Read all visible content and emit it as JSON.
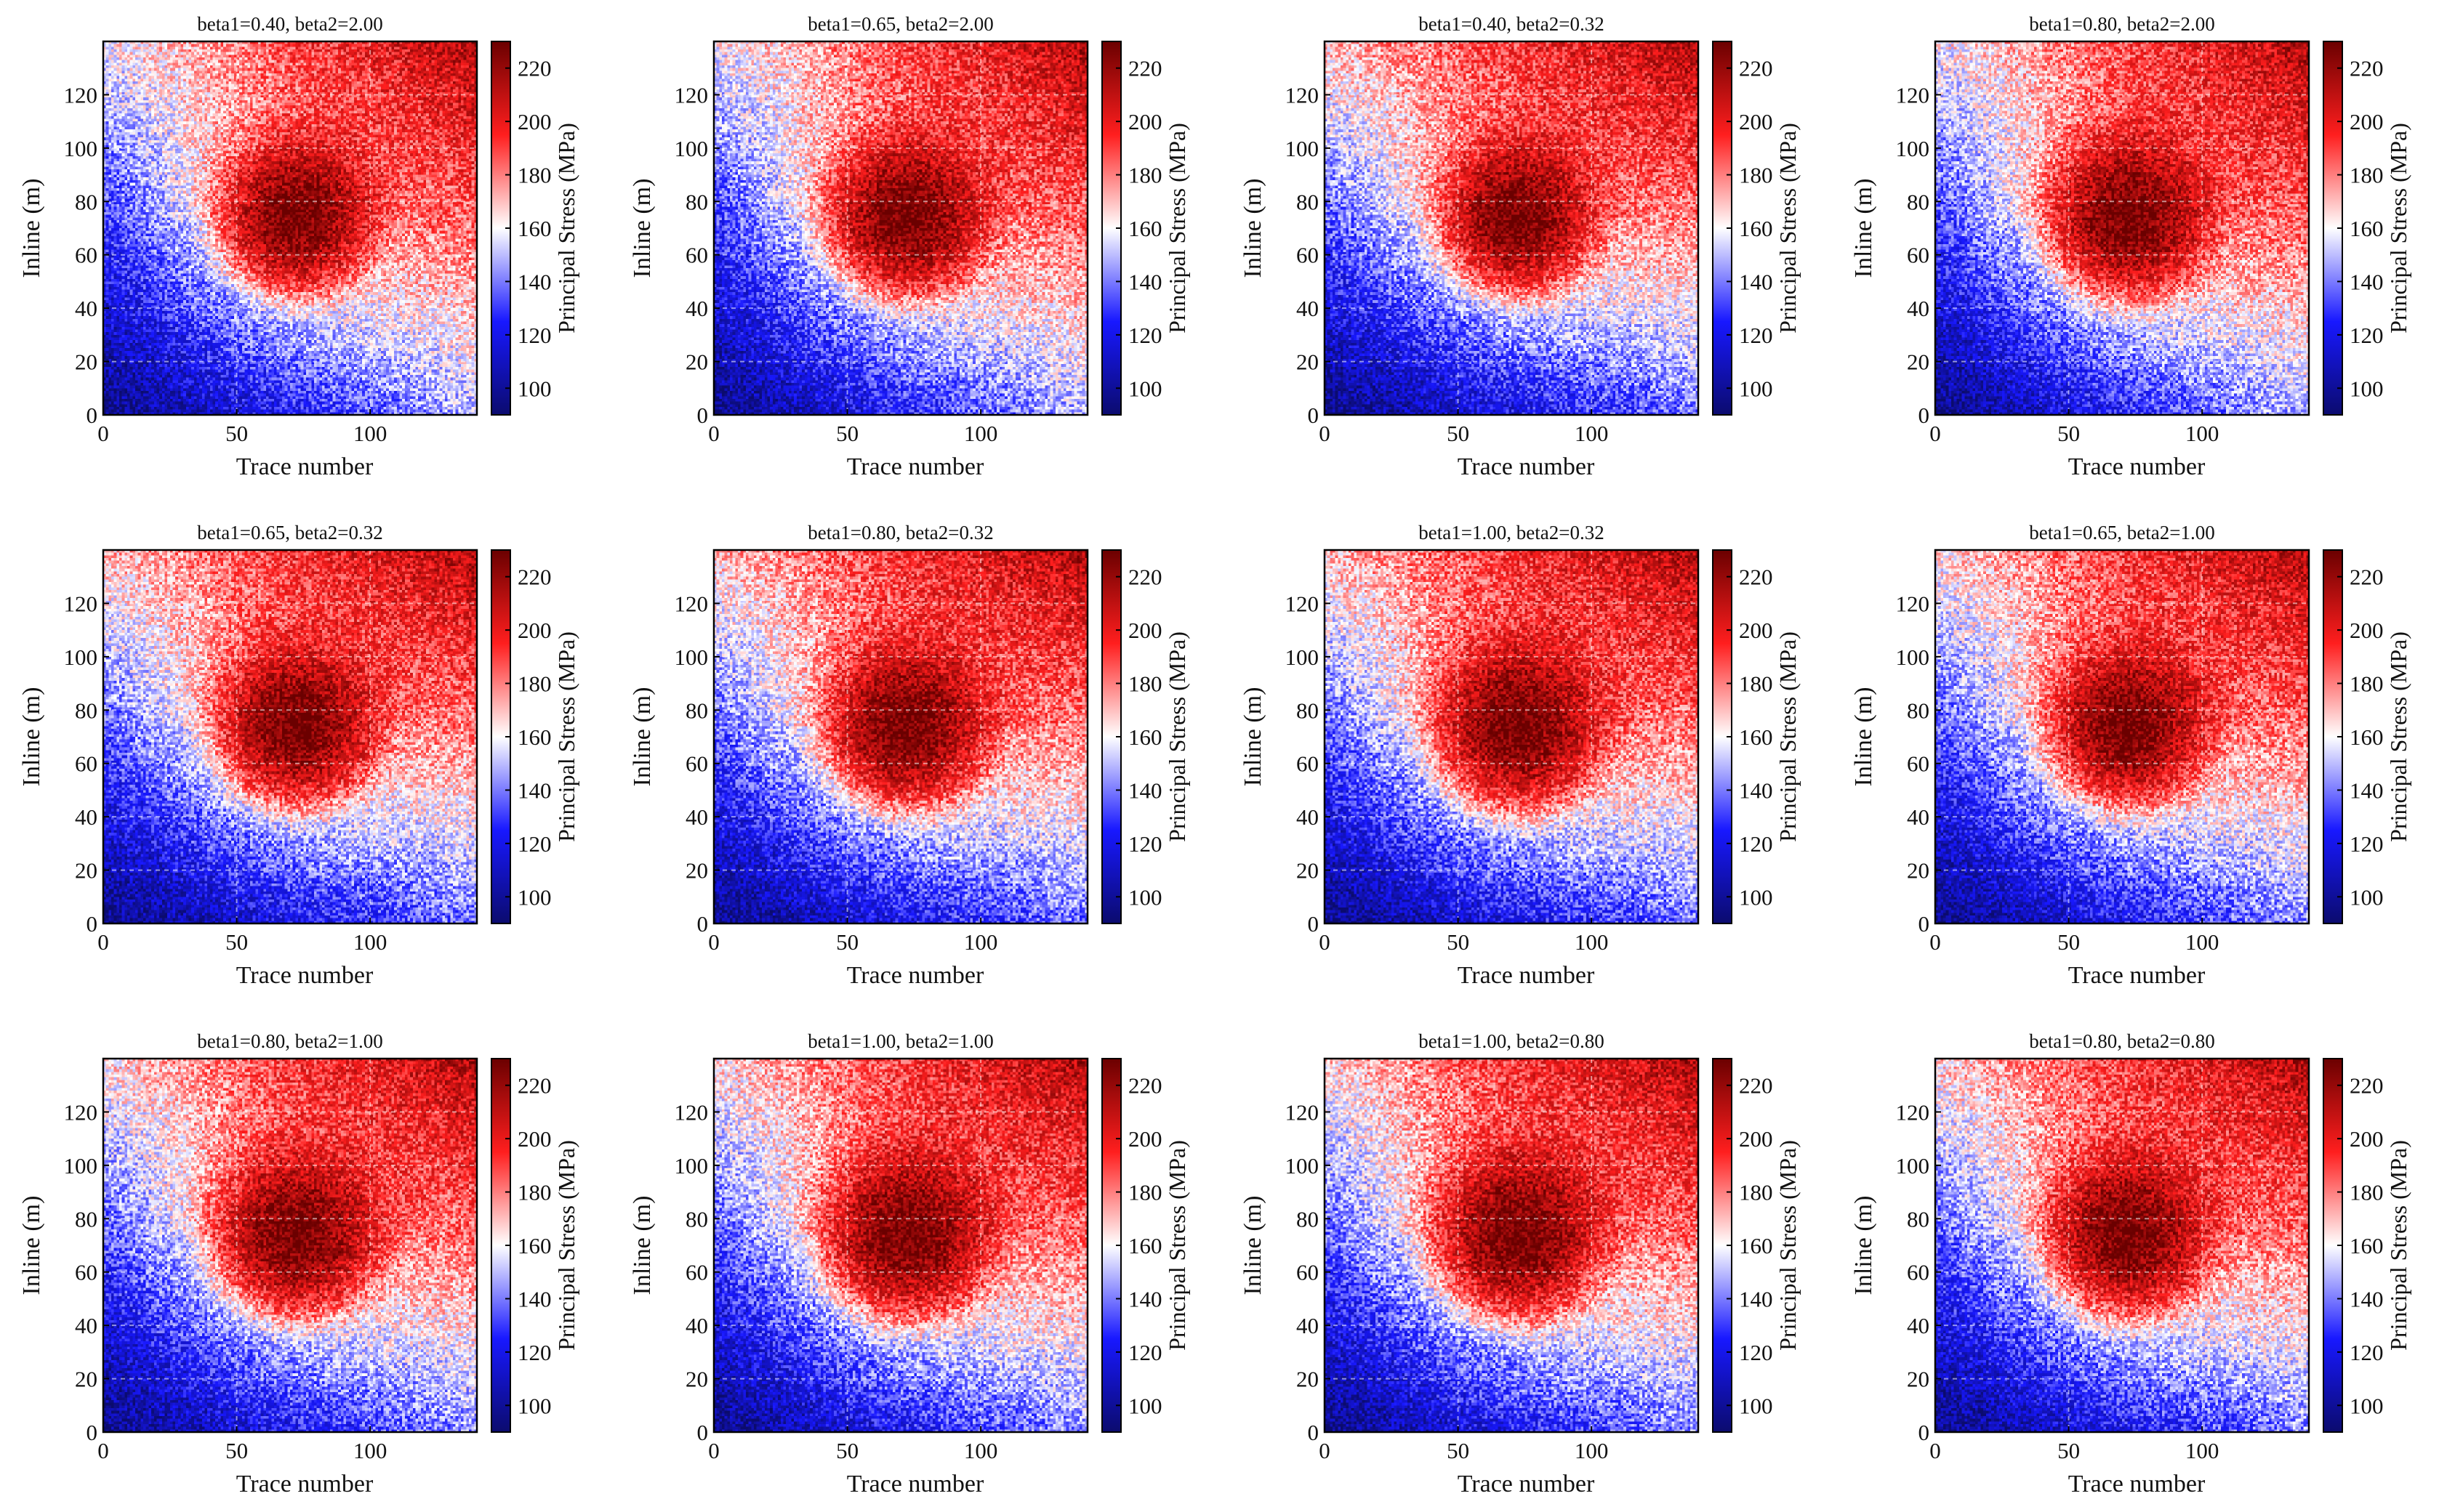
{
  "figure": {
    "colormap": {
      "low": "#0b0b6e",
      "mid_low": "#1818ff",
      "mid": "#ffffff",
      "mid_high": "#ff1e1e",
      "high": "#6b0000"
    }
  },
  "chart_data": [
    {
      "type": "heatmap",
      "title": "beta1=0.40, beta2=2.00",
      "beta1": 0.4,
      "beta2": 2.0,
      "xlabel": "Trace number",
      "ylabel": "Inline (m)",
      "colorbar_label": "Principal Stress (MPa)",
      "xlim": [
        0,
        140
      ],
      "ylim": [
        0,
        140
      ],
      "clim": [
        90,
        230
      ],
      "xticks": [
        0,
        50,
        100
      ],
      "yticks": [
        0,
        20,
        40,
        60,
        80,
        100,
        120
      ],
      "cbar_ticks": [
        100,
        120,
        140,
        160,
        180,
        200,
        220
      ],
      "grid": true,
      "anomaly": {
        "center_x": 72,
        "center_y": 74,
        "peak": 230
      }
    },
    {
      "type": "heatmap",
      "title": "beta1=0.65, beta2=2.00",
      "beta1": 0.65,
      "beta2": 2.0,
      "xlabel": "Trace number",
      "ylabel": "Inline (m)",
      "colorbar_label": "Principal Stress (MPa)",
      "xlim": [
        0,
        140
      ],
      "ylim": [
        0,
        140
      ],
      "clim": [
        90,
        230
      ],
      "xticks": [
        0,
        50,
        100
      ],
      "yticks": [
        0,
        20,
        40,
        60,
        80,
        100,
        120
      ],
      "cbar_ticks": [
        100,
        120,
        140,
        160,
        180,
        200,
        220
      ],
      "grid": true,
      "anomaly": {
        "center_x": 72,
        "center_y": 74,
        "peak": 230
      }
    },
    {
      "type": "heatmap",
      "title": "beta1=0.40, beta2=0.32",
      "beta1": 0.4,
      "beta2": 0.32,
      "xlabel": "Trace number",
      "ylabel": "Inline (m)",
      "colorbar_label": "Principal Stress (MPa)",
      "xlim": [
        0,
        140
      ],
      "ylim": [
        0,
        140
      ],
      "clim": [
        90,
        230
      ],
      "xticks": [
        0,
        50,
        100
      ],
      "yticks": [
        0,
        20,
        40,
        60,
        80,
        100,
        120
      ],
      "cbar_ticks": [
        100,
        120,
        140,
        160,
        180,
        200,
        220
      ],
      "grid": true,
      "anomaly": {
        "center_x": 72,
        "center_y": 74,
        "peak": 230
      }
    },
    {
      "type": "heatmap",
      "title": "beta1=0.80, beta2=2.00",
      "beta1": 0.8,
      "beta2": 2.0,
      "xlabel": "Trace number",
      "ylabel": "Inline (m)",
      "colorbar_label": "Principal Stress (MPa)",
      "xlim": [
        0,
        140
      ],
      "ylim": [
        0,
        140
      ],
      "clim": [
        90,
        230
      ],
      "xticks": [
        0,
        50,
        100
      ],
      "yticks": [
        0,
        20,
        40,
        60,
        80,
        100,
        120
      ],
      "cbar_ticks": [
        100,
        120,
        140,
        160,
        180,
        200,
        220
      ],
      "grid": true,
      "anomaly": {
        "center_x": 72,
        "center_y": 74,
        "peak": 230
      }
    },
    {
      "type": "heatmap",
      "title": "beta1=0.65, beta2=0.32",
      "beta1": 0.65,
      "beta2": 0.32,
      "xlabel": "Trace number",
      "ylabel": "Inline (m)",
      "colorbar_label": "Principal Stress (MPa)",
      "xlim": [
        0,
        140
      ],
      "ylim": [
        0,
        140
      ],
      "clim": [
        90,
        230
      ],
      "xticks": [
        0,
        50,
        100
      ],
      "yticks": [
        0,
        20,
        40,
        60,
        80,
        100,
        120
      ],
      "cbar_ticks": [
        100,
        120,
        140,
        160,
        180,
        200,
        220
      ],
      "grid": true,
      "anomaly": {
        "center_x": 72,
        "center_y": 74,
        "peak": 230
      }
    },
    {
      "type": "heatmap",
      "title": "beta1=0.80, beta2=0.32",
      "beta1": 0.8,
      "beta2": 0.32,
      "xlabel": "Trace number",
      "ylabel": "Inline (m)",
      "colorbar_label": "Principal Stress (MPa)",
      "xlim": [
        0,
        140
      ],
      "ylim": [
        0,
        140
      ],
      "clim": [
        90,
        230
      ],
      "xticks": [
        0,
        50,
        100
      ],
      "yticks": [
        0,
        20,
        40,
        60,
        80,
        100,
        120
      ],
      "cbar_ticks": [
        100,
        120,
        140,
        160,
        180,
        200,
        220
      ],
      "grid": true,
      "anomaly": {
        "center_x": 72,
        "center_y": 74,
        "peak": 230
      }
    },
    {
      "type": "heatmap",
      "title": "beta1=1.00, beta2=0.32",
      "beta1": 1.0,
      "beta2": 0.32,
      "xlabel": "Trace number",
      "ylabel": "Inline (m)",
      "colorbar_label": "Principal Stress (MPa)",
      "xlim": [
        0,
        140
      ],
      "ylim": [
        0,
        140
      ],
      "clim": [
        90,
        230
      ],
      "xticks": [
        0,
        50,
        100
      ],
      "yticks": [
        0,
        20,
        40,
        60,
        80,
        100,
        120
      ],
      "cbar_ticks": [
        100,
        120,
        140,
        160,
        180,
        200,
        220
      ],
      "grid": true,
      "anomaly": {
        "center_x": 72,
        "center_y": 74,
        "peak": 230
      }
    },
    {
      "type": "heatmap",
      "title": "beta1=0.65, beta2=1.00",
      "beta1": 0.65,
      "beta2": 1.0,
      "xlabel": "Trace number",
      "ylabel": "Inline (m)",
      "colorbar_label": "Principal Stress (MPa)",
      "xlim": [
        0,
        140
      ],
      "ylim": [
        0,
        140
      ],
      "clim": [
        90,
        230
      ],
      "xticks": [
        0,
        50,
        100
      ],
      "yticks": [
        0,
        20,
        40,
        60,
        80,
        100,
        120
      ],
      "cbar_ticks": [
        100,
        120,
        140,
        160,
        180,
        200,
        220
      ],
      "grid": true,
      "anomaly": {
        "center_x": 72,
        "center_y": 74,
        "peak": 230
      }
    },
    {
      "type": "heatmap",
      "title": "beta1=0.80, beta2=1.00",
      "beta1": 0.8,
      "beta2": 1.0,
      "xlabel": "Trace number",
      "ylabel": "Inline (m)",
      "colorbar_label": "Principal Stress (MPa)",
      "xlim": [
        0,
        140
      ],
      "ylim": [
        0,
        140
      ],
      "clim": [
        90,
        230
      ],
      "xticks": [
        0,
        50,
        100
      ],
      "yticks": [
        0,
        20,
        40,
        60,
        80,
        100,
        120
      ],
      "cbar_ticks": [
        100,
        120,
        140,
        160,
        180,
        200,
        220
      ],
      "grid": true,
      "anomaly": {
        "center_x": 72,
        "center_y": 74,
        "peak": 230
      }
    },
    {
      "type": "heatmap",
      "title": "beta1=1.00, beta2=1.00",
      "beta1": 1.0,
      "beta2": 1.0,
      "xlabel": "Trace number",
      "ylabel": "Inline (m)",
      "colorbar_label": "Principal Stress (MPa)",
      "xlim": [
        0,
        140
      ],
      "ylim": [
        0,
        140
      ],
      "clim": [
        90,
        230
      ],
      "xticks": [
        0,
        50,
        100
      ],
      "yticks": [
        0,
        20,
        40,
        60,
        80,
        100,
        120
      ],
      "cbar_ticks": [
        100,
        120,
        140,
        160,
        180,
        200,
        220
      ],
      "grid": true,
      "anomaly": {
        "center_x": 72,
        "center_y": 74,
        "peak": 230
      }
    },
    {
      "type": "heatmap",
      "title": "beta1=1.00, beta2=0.80",
      "beta1": 1.0,
      "beta2": 0.8,
      "xlabel": "Trace number",
      "ylabel": "Inline (m)",
      "colorbar_label": "Principal Stress (MPa)",
      "xlim": [
        0,
        140
      ],
      "ylim": [
        0,
        140
      ],
      "clim": [
        90,
        230
      ],
      "xticks": [
        0,
        50,
        100
      ],
      "yticks": [
        0,
        20,
        40,
        60,
        80,
        100,
        120
      ],
      "cbar_ticks": [
        100,
        120,
        140,
        160,
        180,
        200,
        220
      ],
      "grid": true,
      "anomaly": {
        "center_x": 72,
        "center_y": 74,
        "peak": 230
      }
    },
    {
      "type": "heatmap",
      "title": "beta1=0.80, beta2=0.80",
      "beta1": 0.8,
      "beta2": 0.8,
      "xlabel": "Trace number",
      "ylabel": "Inline (m)",
      "colorbar_label": "Principal Stress (MPa)",
      "xlim": [
        0,
        140
      ],
      "ylim": [
        0,
        140
      ],
      "clim": [
        90,
        230
      ],
      "xticks": [
        0,
        50,
        100
      ],
      "yticks": [
        0,
        20,
        40,
        60,
        80,
        100,
        120
      ],
      "cbar_ticks": [
        100,
        120,
        140,
        160,
        180,
        200,
        220
      ],
      "grid": true,
      "anomaly": {
        "center_x": 72,
        "center_y": 74,
        "peak": 230
      }
    }
  ]
}
